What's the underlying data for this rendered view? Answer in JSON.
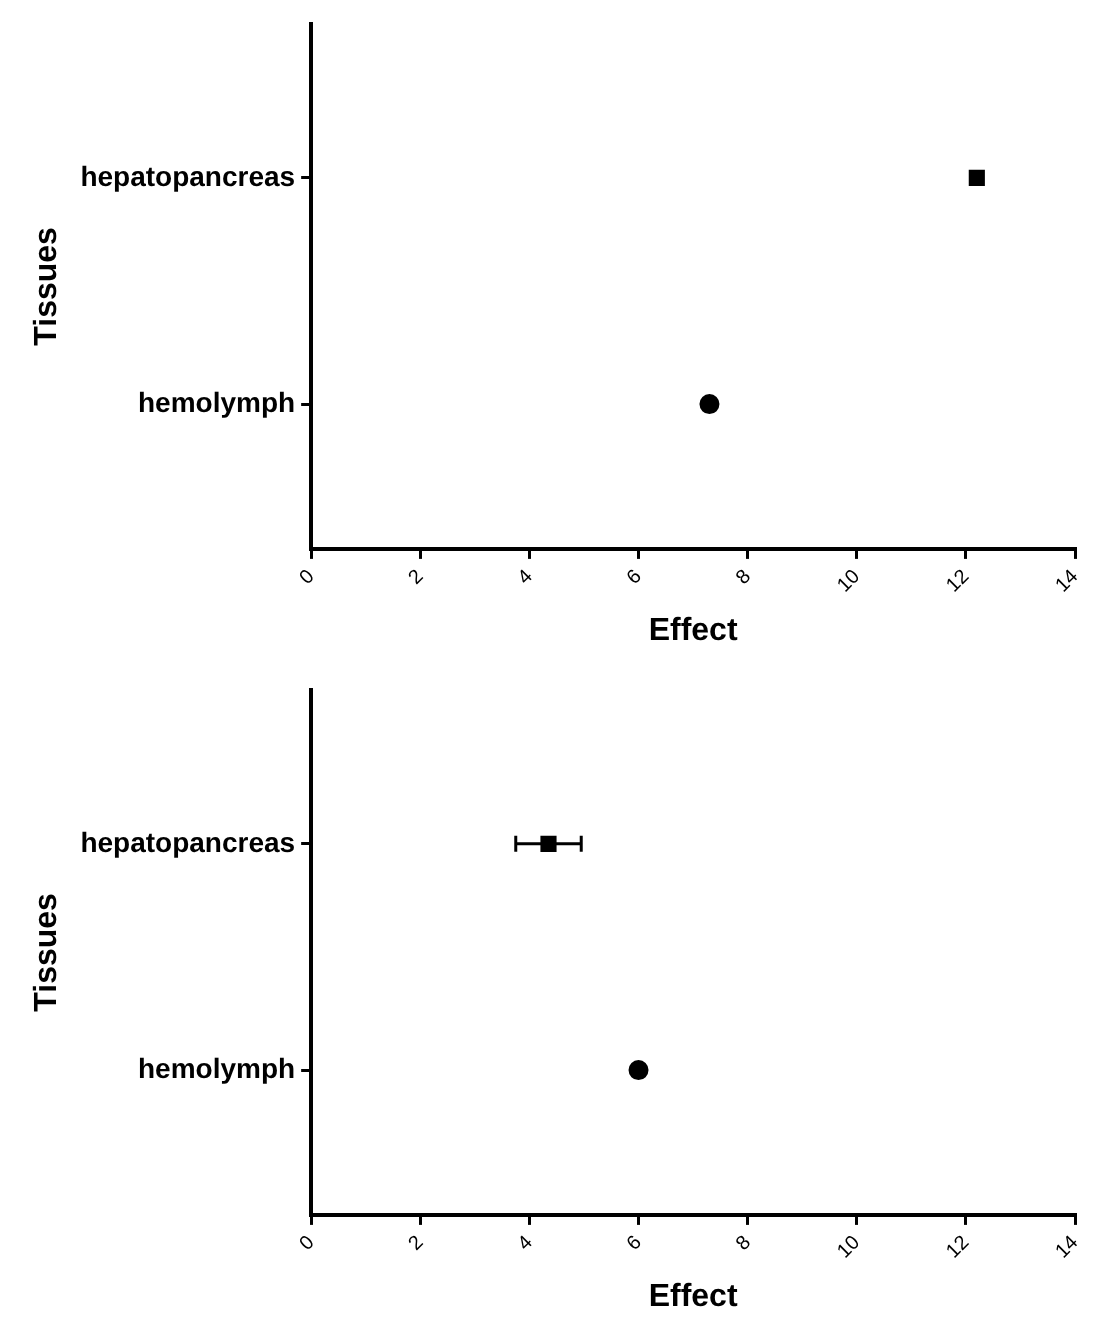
{
  "chart_data": [
    {
      "type": "scatter",
      "orientation": "horizontal",
      "categories": [
        "hepatopancreas",
        "hemolymph"
      ],
      "xlabel": "Effect",
      "ylabel": "Tissues",
      "xlim": [
        0,
        14
      ],
      "xticks": [
        0,
        2,
        4,
        6,
        8,
        10,
        12,
        14
      ],
      "grid": false,
      "legend": false,
      "series": [
        {
          "color": "#000000",
          "marker": "square",
          "values": [
            12.2,
            null
          ]
        },
        {
          "color": "#000000",
          "marker": "circle",
          "values": [
            null,
            7.3
          ]
        }
      ]
    },
    {
      "type": "scatter",
      "orientation": "horizontal",
      "categories": [
        "hepatopancreas",
        "hemolymph"
      ],
      "xlabel": "Effect",
      "ylabel": "Tissues",
      "xlim": [
        0,
        14
      ],
      "xticks": [
        0,
        2,
        4,
        6,
        8,
        10,
        12,
        14
      ],
      "grid": false,
      "legend": false,
      "series": [
        {
          "color": "#000000",
          "marker": "square",
          "values": [
            4.35,
            null
          ],
          "errors": [
            0.6,
            null
          ]
        },
        {
          "color": "#000000",
          "marker": "circle",
          "values": [
            null,
            6.0
          ]
        }
      ]
    }
  ]
}
